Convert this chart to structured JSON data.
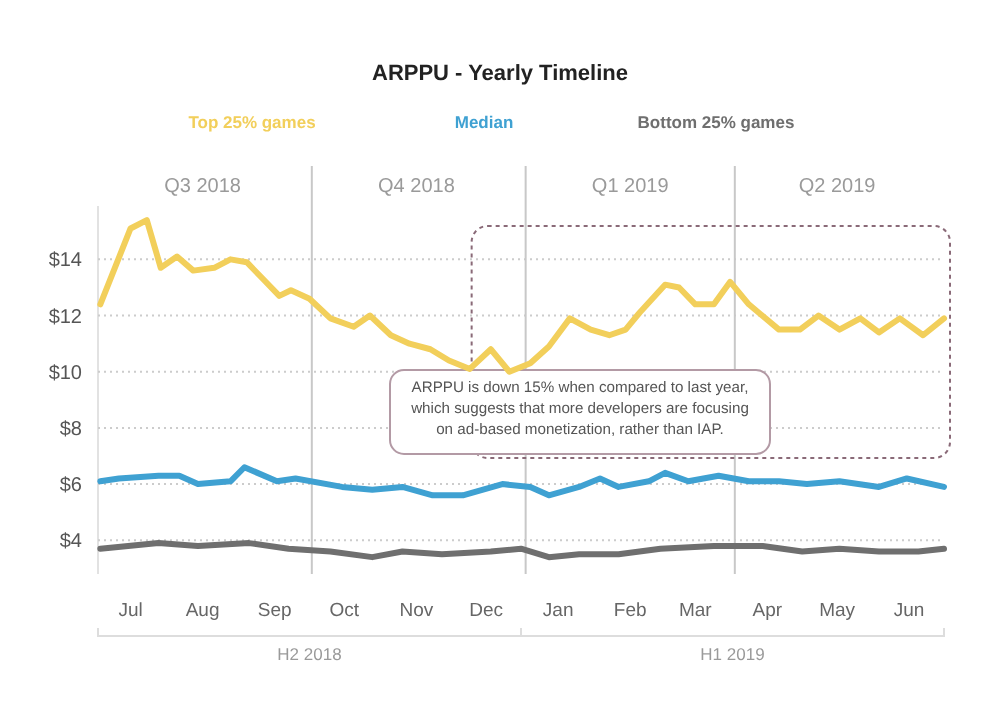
{
  "chart_data": {
    "type": "line",
    "title": "ARPPU - Yearly Timeline",
    "xlim": [
      "2018-07-01",
      "2019-06-30"
    ],
    "xticks": [
      {
        "value": "2018-07-15",
        "label": "Jul"
      },
      {
        "value": "2018-08-15",
        "label": "Aug"
      },
      {
        "value": "2018-09-15",
        "label": "Sep"
      },
      {
        "value": "2018-10-15",
        "label": "Oct"
      },
      {
        "value": "2018-11-15",
        "label": "Nov"
      },
      {
        "value": "2018-12-15",
        "label": "Dec"
      },
      {
        "value": "2019-01-15",
        "label": "Jan"
      },
      {
        "value": "2019-02-15",
        "label": "Feb"
      },
      {
        "value": "2019-03-15",
        "label": "Mar"
      },
      {
        "value": "2019-04-15",
        "label": "Apr"
      },
      {
        "value": "2019-05-15",
        "label": "May"
      },
      {
        "value": "2019-06-15",
        "label": "Jun"
      }
    ],
    "x2lim": [
      "2018-07-01",
      "2019-06-30"
    ],
    "x2ticks": [
      {
        "value": "2018-08-15",
        "label": "Q3 2018"
      },
      {
        "value": "2018-11-15",
        "label": "Q4 2018"
      },
      {
        "value": "2019-02-15",
        "label": "Q1 2019"
      },
      {
        "value": "2019-05-15",
        "label": "Q2 2019"
      }
    ],
    "ylim": [
      2.8,
      15.9
    ],
    "yticks": [
      {
        "value": 4,
        "label": "$4"
      },
      {
        "value": 6,
        "label": "$6"
      },
      {
        "value": 8,
        "label": "$8"
      },
      {
        "value": 10,
        "label": "$10"
      },
      {
        "value": 12,
        "label": "$12"
      },
      {
        "value": 14,
        "label": "$14"
      }
    ],
    "grid": "y",
    "legend": "top",
    "line_style": "solid",
    "marker": "none",
    "ref_lines": [
      {
        "axis": "x",
        "value": "2018-10-01",
        "color": "#c8c8c8"
      },
      {
        "axis": "x",
        "value": "2019-01-01",
        "color": "#c8c8c8"
      },
      {
        "axis": "x",
        "value": "2019-04-01",
        "color": "#c8c8c8"
      }
    ],
    "annotations": [
      "ARPPU is down 15% when compared to last year, which suggests that more developers are focusing on ad-based monetization, rather than IAP.",
      "H2 2018",
      "H1 2019"
    ],
    "series": [
      {
        "name": "Top 25% games",
        "color": "#f2cf5b",
        "x": [
          "2018-07-02",
          "2018-07-15",
          "2018-07-22",
          "2018-07-28",
          "2018-08-04",
          "2018-08-11",
          "2018-08-20",
          "2018-08-27",
          "2018-09-03",
          "2018-09-10",
          "2018-09-17",
          "2018-09-22",
          "2018-09-30",
          "2018-10-09",
          "2018-10-19",
          "2018-10-26",
          "2018-11-04",
          "2018-11-12",
          "2018-11-21",
          "2018-11-29",
          "2018-12-08",
          "2018-12-17",
          "2018-12-25",
          "2019-01-03",
          "2019-01-11",
          "2019-01-20",
          "2019-01-29",
          "2019-02-06",
          "2019-02-13",
          "2019-02-19",
          "2019-03-02",
          "2019-03-08",
          "2019-03-15",
          "2019-03-23",
          "2019-03-30",
          "2019-04-07",
          "2019-04-20",
          "2019-04-29",
          "2019-05-07",
          "2019-05-16",
          "2019-05-25",
          "2019-06-02",
          "2019-06-11",
          "2019-06-21",
          "2019-06-30"
        ],
        "values": [
          12.4,
          15.1,
          15.4,
          13.7,
          14.1,
          13.6,
          13.7,
          14.0,
          13.9,
          13.3,
          12.7,
          12.9,
          12.6,
          11.9,
          11.6,
          12.0,
          11.3,
          11.0,
          10.8,
          10.4,
          10.1,
          10.8,
          10.0,
          10.3,
          10.9,
          11.9,
          11.5,
          11.3,
          11.5,
          12.1,
          13.1,
          13.0,
          12.4,
          12.4,
          13.2,
          12.4,
          11.5,
          11.5,
          12.0,
          11.5,
          11.9,
          11.4,
          11.9,
          11.3,
          11.9
        ]
      },
      {
        "name": "Median",
        "color": "#3fa1d2",
        "x": [
          "2018-07-02",
          "2018-07-10",
          "2018-07-27",
          "2018-08-05",
          "2018-08-13",
          "2018-08-27",
          "2018-09-02",
          "2018-09-16",
          "2018-09-24",
          "2018-10-14",
          "2018-10-27",
          "2018-11-09",
          "2018-11-22",
          "2018-12-05",
          "2018-12-22",
          "2019-01-03",
          "2019-01-11",
          "2019-01-24",
          "2019-02-02",
          "2019-02-10",
          "2019-02-23",
          "2019-03-02",
          "2019-03-12",
          "2019-03-25",
          "2019-04-07",
          "2019-04-20",
          "2019-05-02",
          "2019-05-16",
          "2019-06-02",
          "2019-06-14",
          "2019-06-30"
        ],
        "values": [
          6.1,
          6.2,
          6.3,
          6.3,
          6.0,
          6.1,
          6.6,
          6.1,
          6.2,
          5.9,
          5.8,
          5.9,
          5.6,
          5.6,
          6.0,
          5.9,
          5.6,
          5.9,
          6.2,
          5.9,
          6.1,
          6.4,
          6.1,
          6.3,
          6.1,
          6.1,
          6.0,
          6.1,
          5.9,
          6.2,
          5.9
        ]
      },
      {
        "name": "Bottom 25% games",
        "color": "#6f6f6f",
        "x": [
          "2018-07-02",
          "2018-07-27",
          "2018-08-13",
          "2018-09-04",
          "2018-09-21",
          "2018-10-09",
          "2018-10-27",
          "2018-11-09",
          "2018-11-26",
          "2018-12-17",
          "2018-12-30",
          "2019-01-11",
          "2019-01-24",
          "2019-02-10",
          "2019-02-28",
          "2019-03-23",
          "2019-04-13",
          "2019-04-30",
          "2019-05-16",
          "2019-06-02",
          "2019-06-19",
          "2019-06-30"
        ],
        "values": [
          3.7,
          3.9,
          3.8,
          3.9,
          3.7,
          3.6,
          3.4,
          3.6,
          3.5,
          3.6,
          3.7,
          3.4,
          3.5,
          3.5,
          3.7,
          3.8,
          3.8,
          3.6,
          3.7,
          3.6,
          3.6,
          3.7
        ]
      }
    ]
  }
}
